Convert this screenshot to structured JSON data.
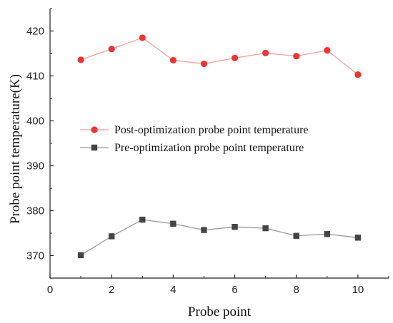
{
  "chart_data": {
    "type": "line",
    "xlabel": "Probe point",
    "ylabel": "Probe point temperature(K)",
    "xlim": [
      0,
      11
    ],
    "ylim": [
      365,
      425
    ],
    "x_ticks": [
      "0",
      "2",
      "4",
      "6",
      "8",
      "10"
    ],
    "y_ticks": [
      "370",
      "380",
      "390",
      "400",
      "410",
      "420"
    ],
    "grid": false,
    "legend_position": "center-left",
    "x": [
      1,
      2,
      3,
      4,
      5,
      6,
      7,
      8,
      9,
      10
    ],
    "series": [
      {
        "name": "Post-optimization probe point temperature",
        "marker": "circle",
        "marker_color": "#ee3333",
        "line_color": "#f4a0a0",
        "values": [
          413.6,
          416.0,
          418.5,
          413.5,
          412.7,
          414.0,
          415.1,
          414.4,
          415.7,
          410.3
        ]
      },
      {
        "name": "Pre-optimization probe point temperature",
        "marker": "square",
        "marker_color": "#444444",
        "line_color": "#999999",
        "values": [
          370.1,
          374.3,
          378.0,
          377.1,
          375.7,
          376.4,
          376.1,
          374.4,
          374.8,
          374.0
        ]
      }
    ]
  }
}
